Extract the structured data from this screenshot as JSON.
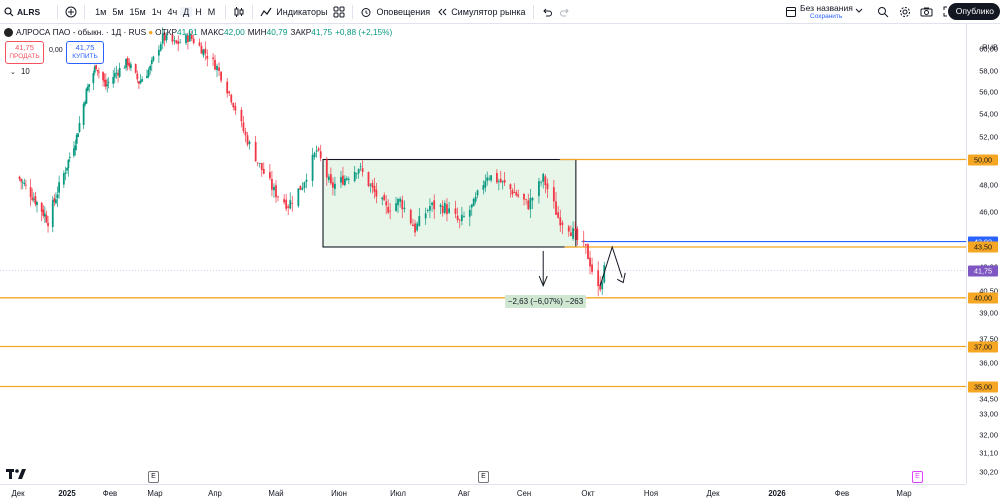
{
  "toolbar": {
    "symbol": "ALRS",
    "intervals": [
      "1м",
      "5м",
      "15м",
      "1ч",
      "4ч",
      "Д",
      "Н",
      "М"
    ],
    "active_interval": "Д",
    "indicators_label": "Индикаторы",
    "alerts_label": "Оповещения",
    "replay_label": "Симулятор рынка",
    "layout_title": "Без названия",
    "layout_saved": "Сохранить",
    "publish_label": "Опублико"
  },
  "legend": {
    "title": "АЛРОСА ПАО - обыкн. · 1Д · RUS",
    "open_label": "ОТКР",
    "open_value": "41,01",
    "high_label": "МАКС",
    "high_value": "42,00",
    "low_label": "МИН",
    "low_value": "40,79",
    "close_label": "ЗАКР",
    "close_value": "41,75",
    "change": "+0,88 (+2,15%)",
    "sell_price": "41,75",
    "sell_label": "ПРОДАТЬ",
    "spread": "0,00",
    "buy_price": "41,75",
    "buy_label": "КУПИТЬ",
    "volume_label": "10"
  },
  "measure_label": "−2,63 (−6,07%) −263",
  "price_axis": {
    "currency": "RUB",
    "ticks": [
      "60,00",
      "58,00",
      "56,00",
      "54,00",
      "52,00",
      "50,00",
      "48,00",
      "46,00",
      "44,00",
      "42,00",
      "40,50",
      "39,00",
      "37,50",
      "36,00",
      "34,50",
      "33,00",
      "32,00",
      "31,10",
      "30,20"
    ],
    "badges": [
      {
        "label": "50,00",
        "color": "#f5a623",
        "text_color": "#131722"
      },
      {
        "label": "43,92",
        "color": "#2962ff",
        "text_color": "#ffffff"
      },
      {
        "label": "43,50",
        "color": "#f5a623",
        "text_color": "#131722"
      },
      {
        "label": "41,75",
        "color": "#7e57c2",
        "text_color": "#ffffff"
      },
      {
        "label": "40,00",
        "color": "#f5a623",
        "text_color": "#131722"
      },
      {
        "label": "37,00",
        "color": "#f5a623",
        "text_color": "#131722"
      },
      {
        "label": "35,00",
        "color": "#f5a623",
        "text_color": "#131722"
      }
    ]
  },
  "time_axis": [
    "Дек",
    "2025",
    "Фев",
    "Мар",
    "Апр",
    "Май",
    "Июн",
    "Июл",
    "Авг",
    "Сен",
    "Окт",
    "Ноя",
    "Дек",
    "2026",
    "Фев",
    "Мар"
  ],
  "earnings_markers": [
    "E",
    "E",
    "E"
  ],
  "colors": {
    "up": "#089981",
    "down": "#f23645",
    "level": "#f5a623",
    "blue_level": "#2962ff",
    "range_fill": "#e8f5e9"
  },
  "chart_data": {
    "type": "candlestick",
    "title": "АЛРОСА ПАО - обыкн. · 1Д · RUS",
    "y_unit": "RUB",
    "ylim": [
      30.2,
      60.5
    ],
    "x_range": [
      "2024-12-01",
      "2026-03-31"
    ],
    "levels": [
      50.0,
      43.5,
      40.0,
      37.0,
      35.0
    ],
    "blue_level": 43.92,
    "last_price": 41.75,
    "range_box": {
      "from": "2025-06-01",
      "to": "2025-09-30",
      "high": 50.0,
      "low": 43.5
    },
    "price_path": [
      [
        "2024-12-01",
        48.6
      ],
      [
        "2024-12-10",
        47.2
      ],
      [
        "2024-12-20",
        45.4
      ],
      [
        "2024-12-27",
        47.8
      ],
      [
        "2025-01-08",
        52.0
      ],
      [
        "2025-01-15",
        56.0
      ],
      [
        "2025-01-22",
        58.5
      ],
      [
        "2025-01-29",
        56.5
      ],
      [
        "2025-02-05",
        57.8
      ],
      [
        "2025-02-12",
        58.8
      ],
      [
        "2025-02-19",
        56.9
      ],
      [
        "2025-02-26",
        58.2
      ],
      [
        "2025-03-05",
        61.0
      ],
      [
        "2025-03-12",
        60.4
      ],
      [
        "2025-03-19",
        61.1
      ],
      [
        "2025-03-26",
        59.8
      ],
      [
        "2025-04-02",
        58.3
      ],
      [
        "2025-04-09",
        55.4
      ],
      [
        "2025-04-16",
        52.0
      ],
      [
        "2025-04-23",
        49.5
      ],
      [
        "2025-04-30",
        47.5
      ],
      [
        "2025-05-07",
        46.5
      ],
      [
        "2025-05-14",
        48.0
      ],
      [
        "2025-05-21",
        50.8
      ],
      [
        "2025-05-28",
        47.8
      ],
      [
        "2025-06-04",
        48.5
      ],
      [
        "2025-06-11",
        49.4
      ],
      [
        "2025-06-18",
        47.6
      ],
      [
        "2025-06-25",
        46.2
      ],
      [
        "2025-07-02",
        46.8
      ],
      [
        "2025-07-09",
        44.8
      ],
      [
        "2025-07-16",
        46.4
      ],
      [
        "2025-07-23",
        46.3
      ],
      [
        "2025-07-30",
        45.2
      ],
      [
        "2025-08-06",
        46.5
      ],
      [
        "2025-08-13",
        48.8
      ],
      [
        "2025-08-20",
        48.2
      ],
      [
        "2025-08-27",
        47.4
      ],
      [
        "2025-09-03",
        46.5
      ],
      [
        "2025-09-10",
        48.5
      ],
      [
        "2025-09-17",
        45.6
      ],
      [
        "2025-09-22",
        45.0
      ],
      [
        "2025-09-26",
        44.0
      ],
      [
        "2025-09-30",
        43.3
      ],
      [
        "2025-10-03",
        41.8
      ],
      [
        "2025-10-06",
        40.5
      ],
      [
        "2025-10-09",
        41.75
      ]
    ]
  }
}
